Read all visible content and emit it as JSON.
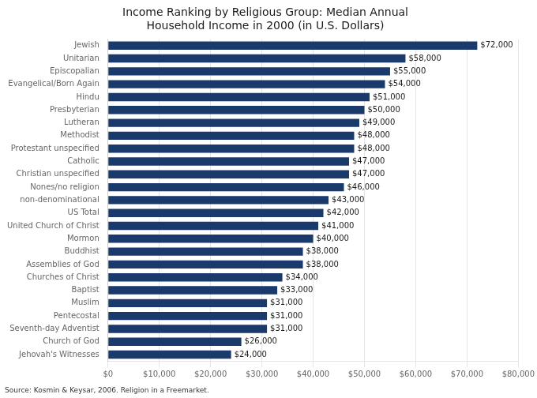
{
  "chart_data": {
    "type": "bar",
    "orientation": "horizontal",
    "title": "Income Ranking by Religious Group: Median Annual\nHousehold Income in 2000 (in U.S. Dollars)",
    "annotation": "Source: Kosmin & Keysar, 2006. Religion in a Freemarket.",
    "categories": [
      "Jewish",
      "Unitarian",
      "Episcopalian",
      "Evangelical/Born Again",
      "Hindu",
      "Presbyterian",
      "Lutheran",
      "Methodist",
      "Protestant unspecified",
      "Catholic",
      "Christian unspecified",
      "Nones/no religion",
      "non-denominational",
      "US Total",
      "United Church of Christ",
      "Mormon",
      "Buddhist",
      "Assemblies of God",
      "Churches of Christ",
      "Baptist",
      "Muslim",
      "Pentecostal",
      "Seventh-day Adventist",
      "Church of God",
      "Jehovah's Witnesses"
    ],
    "values": [
      72000,
      58000,
      55000,
      54000,
      51000,
      50000,
      49000,
      48000,
      48000,
      47000,
      47000,
      46000,
      43000,
      42000,
      41000,
      40000,
      38000,
      38000,
      34000,
      33000,
      31000,
      31000,
      31000,
      26000,
      24000
    ],
    "value_labels": [
      "$72,000",
      "$58,000",
      "$55,000",
      "$54,000",
      "$51,000",
      "$50,000",
      "$49,000",
      "$48,000",
      "$48,000",
      "$47,000",
      "$47,000",
      "$46,000",
      "$43,000",
      "$42,000",
      "$41,000",
      "$40,000",
      "$38,000",
      "$38,000",
      "$34,000",
      "$33,000",
      "$31,000",
      "$31,000",
      "$31,000",
      "$26,000",
      "$24,000"
    ],
    "data_labels": true,
    "color": "#1a3a6b",
    "xlim": [
      0,
      80000
    ],
    "xticks": [
      {
        "value": 0,
        "label": "$0"
      },
      {
        "value": 10000,
        "label": "$10,000"
      },
      {
        "value": 20000,
        "label": "$20,000"
      },
      {
        "value": 30000,
        "label": "$30,000"
      },
      {
        "value": 40000,
        "label": "$40,000"
      },
      {
        "value": 50000,
        "label": "$50,000"
      },
      {
        "value": 60000,
        "label": "$60,000"
      },
      {
        "value": 70000,
        "label": "$70,000"
      },
      {
        "value": 80000,
        "label": "$80,000"
      }
    ],
    "grid": true
  }
}
